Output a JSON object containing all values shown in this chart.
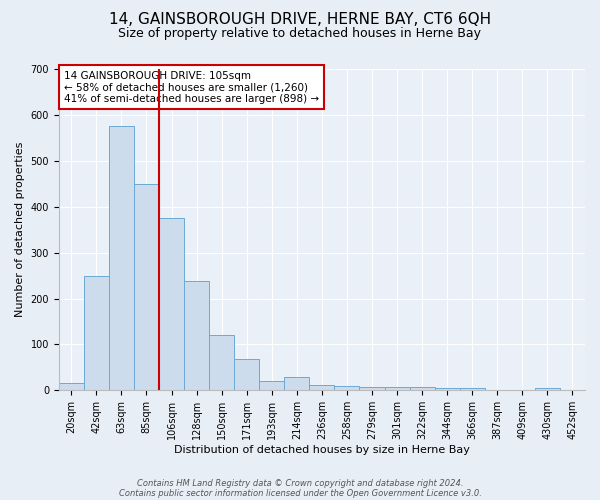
{
  "title": "14, GAINSBOROUGH DRIVE, HERNE BAY, CT6 6QH",
  "subtitle": "Size of property relative to detached houses in Herne Bay",
  "xlabel": "Distribution of detached houses by size in Herne Bay",
  "ylabel": "Number of detached properties",
  "bar_labels": [
    "20sqm",
    "42sqm",
    "63sqm",
    "85sqm",
    "106sqm",
    "128sqm",
    "150sqm",
    "171sqm",
    "193sqm",
    "214sqm",
    "236sqm",
    "258sqm",
    "279sqm",
    "301sqm",
    "322sqm",
    "344sqm",
    "366sqm",
    "387sqm",
    "409sqm",
    "430sqm",
    "452sqm"
  ],
  "bar_values": [
    15,
    248,
    575,
    450,
    375,
    238,
    120,
    68,
    20,
    30,
    12,
    10,
    8,
    8,
    8,
    5,
    5,
    0,
    0,
    5,
    0
  ],
  "bar_color": "#ccdced",
  "bar_edge_color": "#6aaad4",
  "red_line_index": 4,
  "annotation_line1": "14 GAINSBOROUGH DRIVE: 105sqm",
  "annotation_line2": "← 58% of detached houses are smaller (1,260)",
  "annotation_line3": "41% of semi-detached houses are larger (898) →",
  "annotation_box_facecolor": "#ffffff",
  "annotation_box_edgecolor": "#cc0000",
  "red_line_color": "#cc0000",
  "ylim": [
    0,
    700
  ],
  "yticks": [
    0,
    100,
    200,
    300,
    400,
    500,
    600,
    700
  ],
  "footer1": "Contains HM Land Registry data © Crown copyright and database right 2024.",
  "footer2": "Contains public sector information licensed under the Open Government Licence v3.0.",
  "bg_color": "#e8eef6",
  "plot_bg_color": "#eaf0f8",
  "title_fontsize": 11,
  "subtitle_fontsize": 9,
  "axis_label_fontsize": 8,
  "tick_fontsize": 7,
  "annotation_fontsize": 7.5,
  "footer_fontsize": 6
}
